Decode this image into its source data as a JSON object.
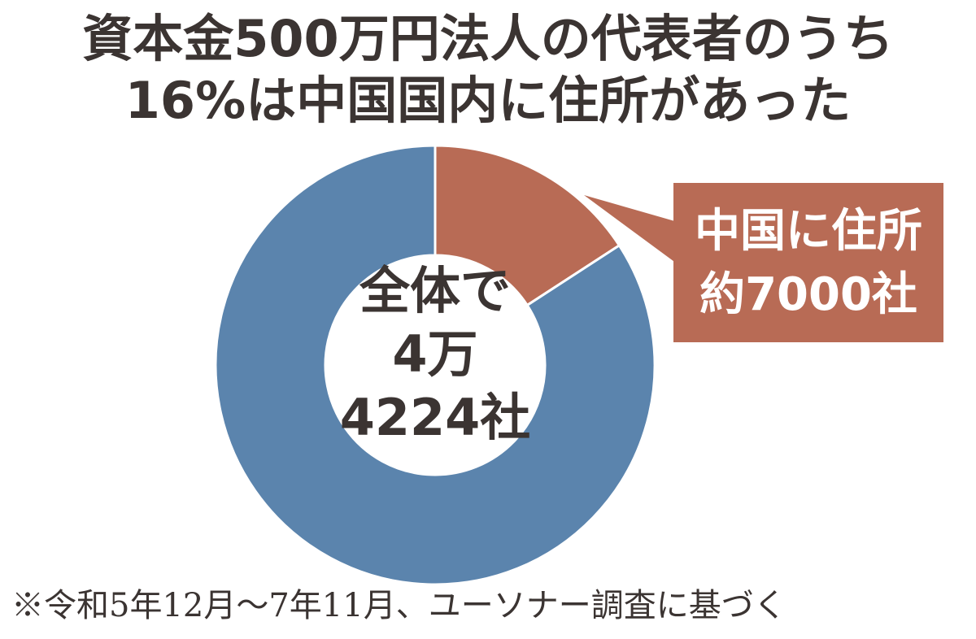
{
  "chart_data": {
    "type": "donut",
    "title": [
      "資本金500万円法人の代表者のうち",
      "16%は中国国内に住所があった"
    ],
    "categories": [
      "中国に住所",
      null
    ],
    "values": [
      7000,
      37224
    ],
    "value_labels": [
      "約7000社",
      null
    ],
    "colors": [
      "#b86b55",
      "#5b84ad"
    ],
    "center_label": [
      "全体で",
      "4万",
      "4224社"
    ],
    "note": "※令和5年12月～7年11月、ユーソナー調査に基づく"
  }
}
